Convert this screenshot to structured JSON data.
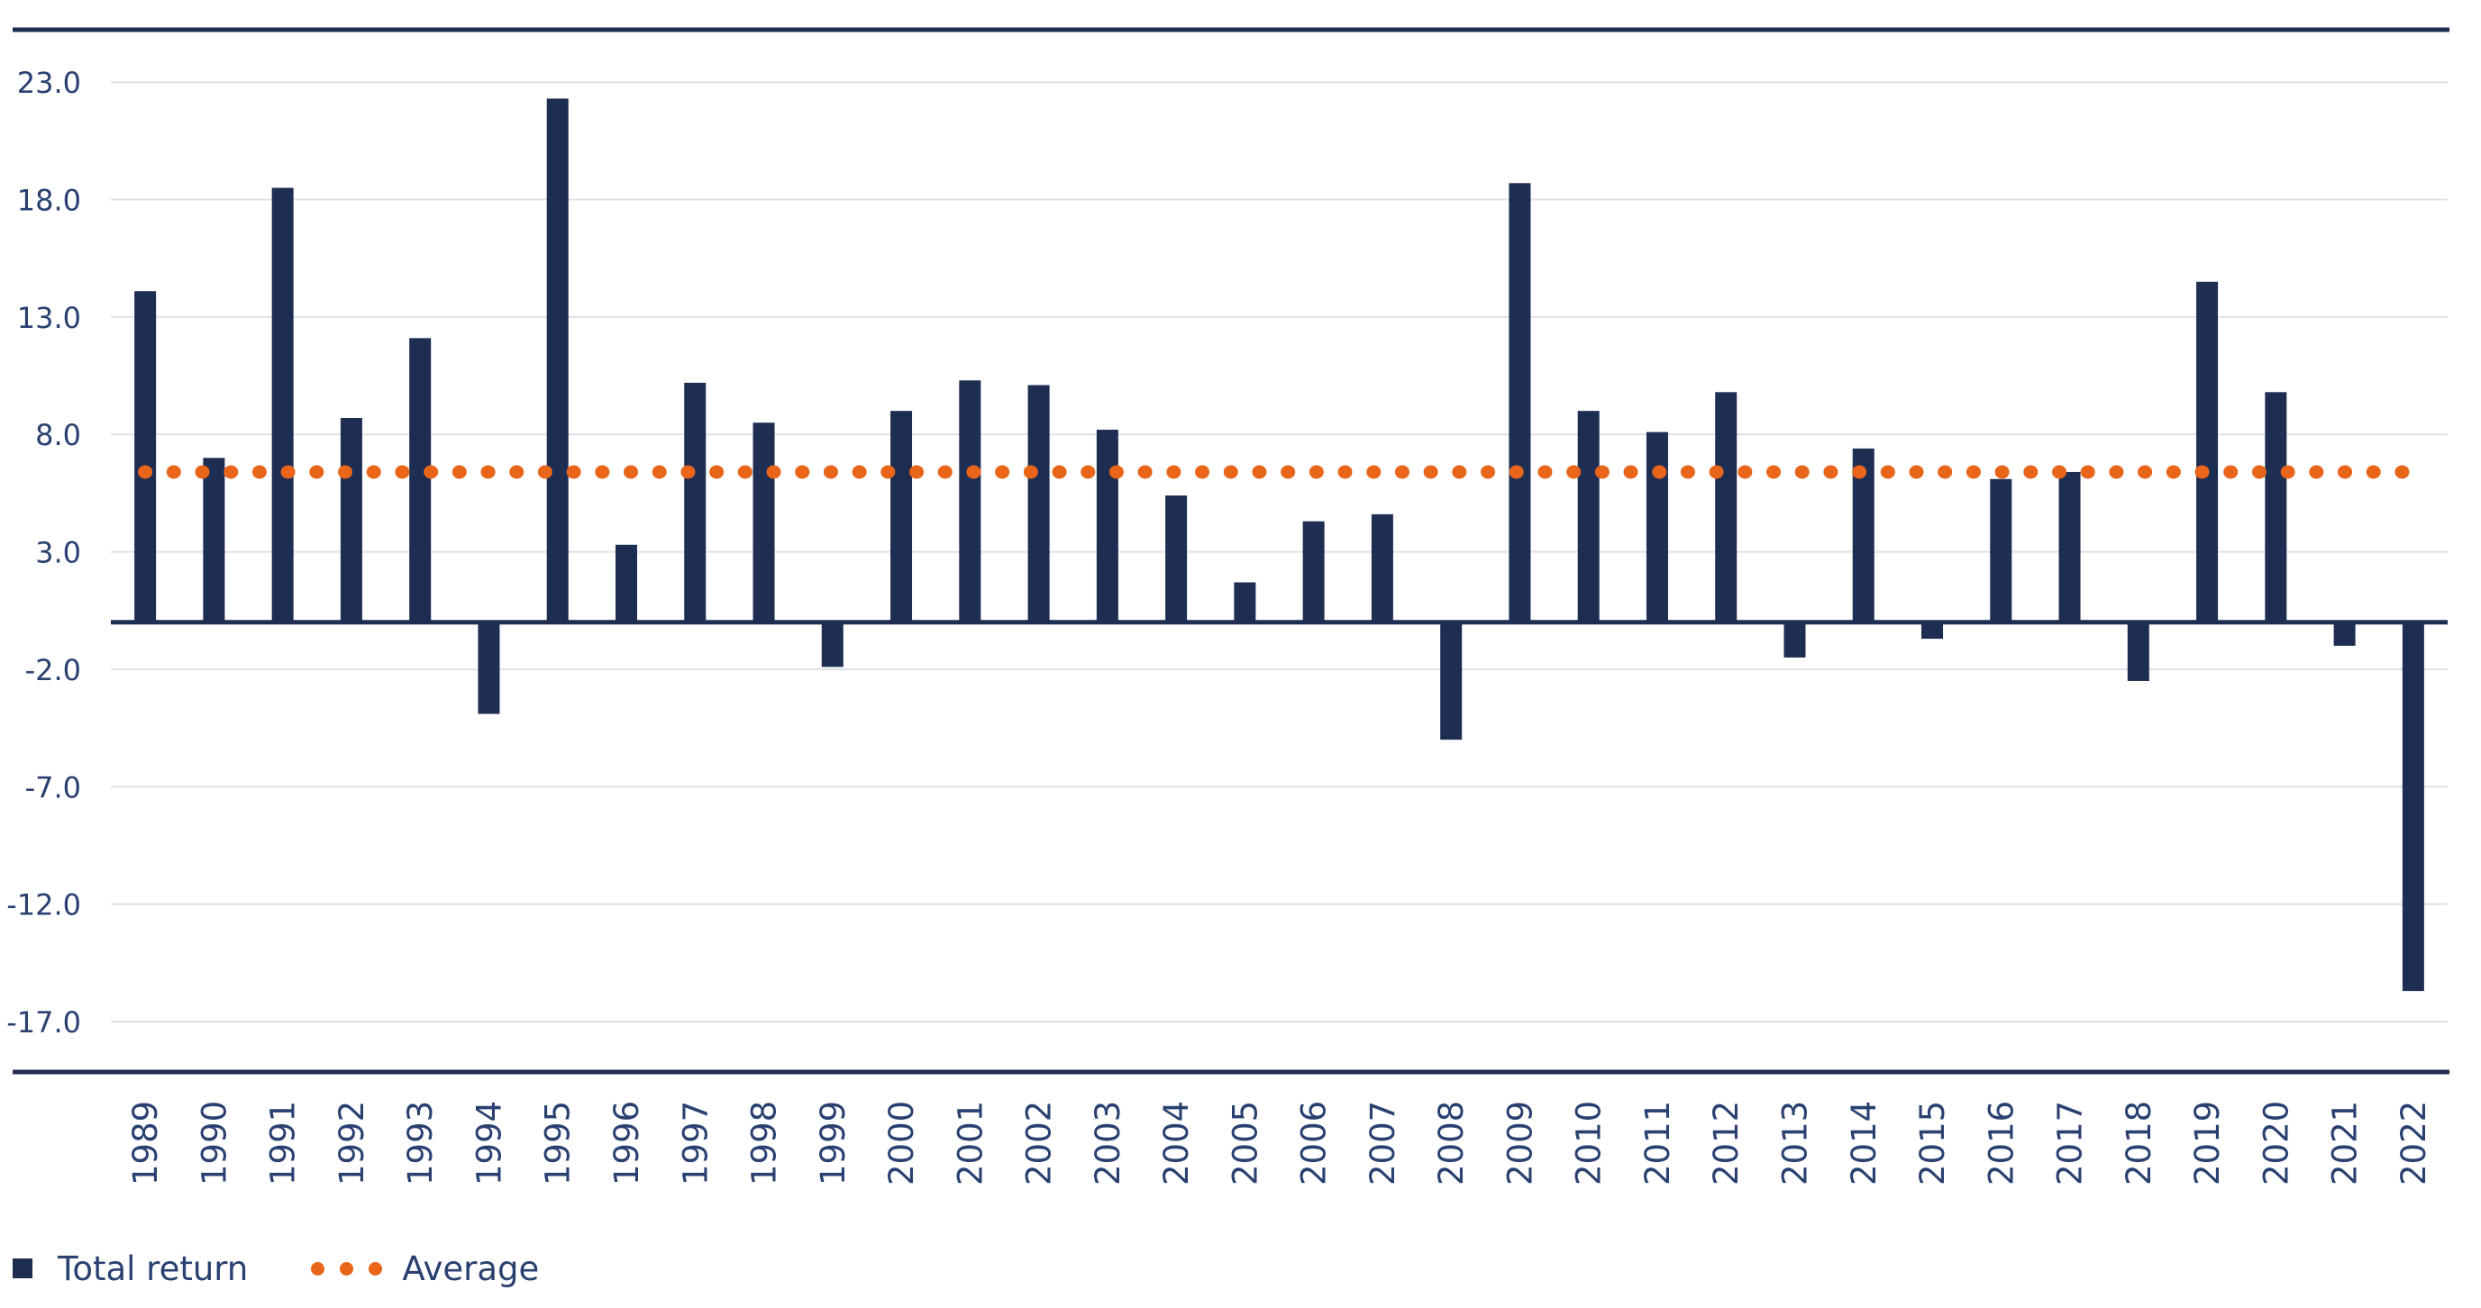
{
  "chart_data": {
    "type": "bar",
    "title": "",
    "xlabel": "",
    "ylabel": "",
    "categories": [
      "1989",
      "1990",
      "1991",
      "1992",
      "1993",
      "1994",
      "1995",
      "1996",
      "1997",
      "1998",
      "1999",
      "2000",
      "2001",
      "2002",
      "2003",
      "2004",
      "2005",
      "2006",
      "2007",
      "2008",
      "2009",
      "2010",
      "2011",
      "2012",
      "2013",
      "2014",
      "2015",
      "2016",
      "2017",
      "2018",
      "2019",
      "2020",
      "2021",
      "2022"
    ],
    "series": [
      {
        "name": "Total return",
        "type": "bar",
        "color": "#1e2d52",
        "values": [
          14.1,
          7.0,
          18.5,
          8.7,
          12.1,
          -3.9,
          22.3,
          3.3,
          10.2,
          8.5,
          -1.9,
          9.0,
          10.3,
          10.1,
          8.2,
          5.4,
          1.7,
          4.3,
          4.6,
          -5.0,
          18.7,
          9.0,
          8.1,
          9.8,
          -1.5,
          7.4,
          -0.7,
          6.1,
          6.4,
          -2.5,
          14.5,
          9.8,
          -1.0,
          -15.7
        ]
      },
      {
        "name": "Average",
        "type": "line",
        "style": "dotted",
        "color": "#e8651a",
        "value": 6.4
      }
    ],
    "yticks": [
      "23.0",
      "18.0",
      "13.0",
      "8.0",
      "3.0",
      "-2.0",
      "-7.0",
      "-12.0",
      "-17.0"
    ],
    "ytick_values": [
      23,
      18,
      13,
      8,
      3,
      -2,
      -7,
      -12,
      -17
    ],
    "ylim": [
      -19.2,
      25.3
    ],
    "grid": true,
    "legend_position": "bottom-left"
  },
  "legend": {
    "total_return_label": "Total return",
    "average_label": "Average"
  },
  "colors": {
    "bar": "#1e2d52",
    "average": "#e8651a",
    "text": "#2a4070",
    "grid": "#dfe1e7",
    "axis": "#1e2d52"
  }
}
